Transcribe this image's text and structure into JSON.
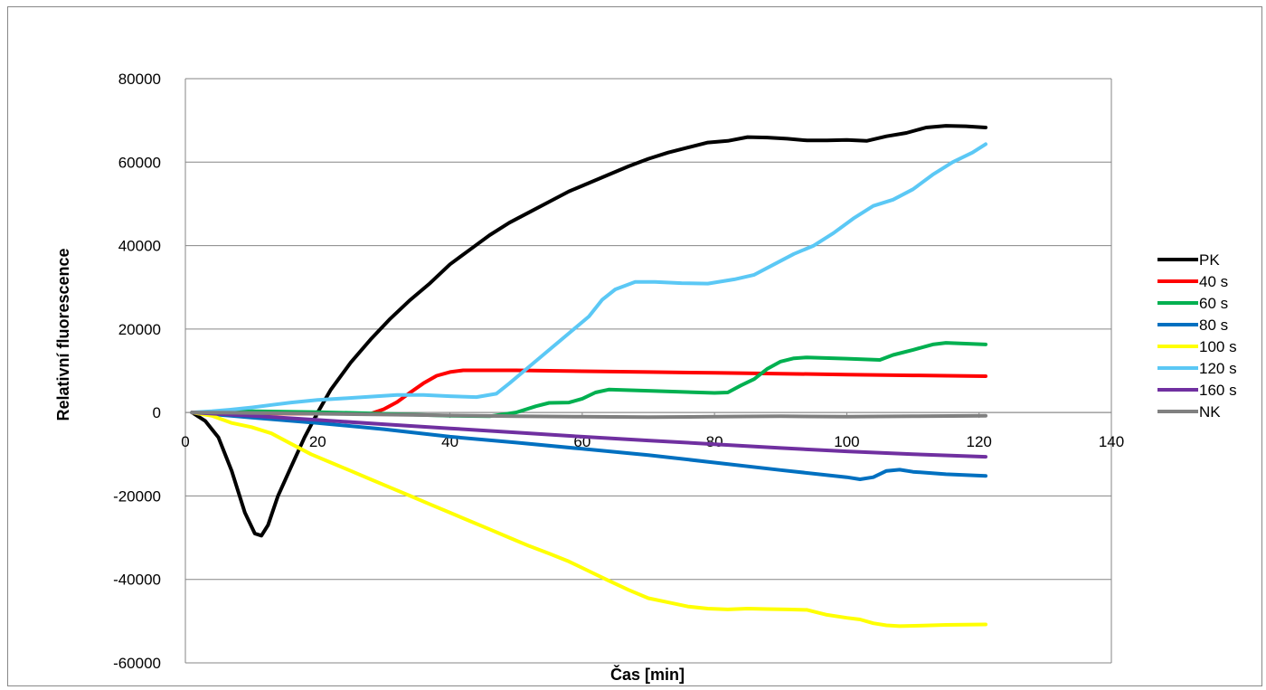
{
  "chart_data": {
    "type": "line",
    "xlabel": "Čas [min]",
    "ylabel": "Relativní fluorescence",
    "xlim": [
      0,
      140
    ],
    "ylim": [
      -60000,
      80000
    ],
    "x_ticks": [
      0,
      20,
      40,
      60,
      80,
      100,
      120,
      140
    ],
    "y_ticks": [
      -60000,
      -40000,
      -20000,
      0,
      20000,
      40000,
      60000,
      80000
    ],
    "grid": "horizontal",
    "legend_position": "right",
    "series": [
      {
        "name": "PK",
        "color": "#000000",
        "points": [
          [
            1,
            0
          ],
          [
            3,
            -2000
          ],
          [
            5,
            -6000
          ],
          [
            7,
            -14000
          ],
          [
            9,
            -24000
          ],
          [
            10.5,
            -29000
          ],
          [
            11.5,
            -29500
          ],
          [
            12.5,
            -27000
          ],
          [
            14,
            -20000
          ],
          [
            16,
            -13000
          ],
          [
            18,
            -6000
          ],
          [
            20,
            0
          ],
          [
            22,
            5500
          ],
          [
            25,
            12000
          ],
          [
            28,
            17500
          ],
          [
            31,
            22500
          ],
          [
            34,
            27000
          ],
          [
            37,
            31000
          ],
          [
            40,
            35500
          ],
          [
            43,
            39000
          ],
          [
            46,
            42500
          ],
          [
            49,
            45500
          ],
          [
            52,
            48000
          ],
          [
            55,
            50500
          ],
          [
            58,
            53000
          ],
          [
            61,
            55000
          ],
          [
            64,
            57000
          ],
          [
            67,
            59000
          ],
          [
            70,
            60800
          ],
          [
            73,
            62300
          ],
          [
            76,
            63500
          ],
          [
            79,
            64700
          ],
          [
            82,
            65100
          ],
          [
            85,
            66000
          ],
          [
            88,
            65900
          ],
          [
            91,
            65600
          ],
          [
            94,
            65200
          ],
          [
            97,
            65200
          ],
          [
            100,
            65300
          ],
          [
            103,
            65100
          ],
          [
            106,
            66200
          ],
          [
            109,
            67000
          ],
          [
            112,
            68300
          ],
          [
            115,
            68700
          ],
          [
            118,
            68600
          ],
          [
            121,
            68300
          ]
        ]
      },
      {
        "name": "40 s",
        "color": "#ff0000",
        "points": [
          [
            1,
            0
          ],
          [
            10,
            -200
          ],
          [
            20,
            -300
          ],
          [
            28,
            -300
          ],
          [
            30,
            800
          ],
          [
            32,
            2500
          ],
          [
            34,
            4800
          ],
          [
            36,
            7000
          ],
          [
            38,
            8800
          ],
          [
            40,
            9700
          ],
          [
            42,
            10100
          ],
          [
            50,
            10100
          ],
          [
            60,
            9900
          ],
          [
            70,
            9700
          ],
          [
            80,
            9500
          ],
          [
            90,
            9300
          ],
          [
            100,
            9100
          ],
          [
            110,
            8900
          ],
          [
            121,
            8700
          ]
        ]
      },
      {
        "name": "60 s",
        "color": "#00b050",
        "points": [
          [
            1,
            0
          ],
          [
            10,
            300
          ],
          [
            20,
            100
          ],
          [
            30,
            -300
          ],
          [
            40,
            -800
          ],
          [
            46,
            -900
          ],
          [
            50,
            0
          ],
          [
            53,
            1500
          ],
          [
            55,
            2300
          ],
          [
            58,
            2400
          ],
          [
            60,
            3300
          ],
          [
            62,
            4800
          ],
          [
            64,
            5500
          ],
          [
            70,
            5200
          ],
          [
            80,
            4700
          ],
          [
            82,
            4800
          ],
          [
            84,
            6500
          ],
          [
            86,
            8000
          ],
          [
            88,
            10500
          ],
          [
            90,
            12200
          ],
          [
            92,
            13000
          ],
          [
            94,
            13200
          ],
          [
            100,
            12900
          ],
          [
            105,
            12600
          ],
          [
            107,
            13800
          ],
          [
            110,
            15000
          ],
          [
            113,
            16300
          ],
          [
            115,
            16700
          ],
          [
            121,
            16300
          ]
        ]
      },
      {
        "name": "80 s",
        "color": "#0070c0",
        "points": [
          [
            1,
            0
          ],
          [
            10,
            -1200
          ],
          [
            20,
            -2500
          ],
          [
            30,
            -4000
          ],
          [
            40,
            -5800
          ],
          [
            50,
            -7200
          ],
          [
            60,
            -8700
          ],
          [
            70,
            -10200
          ],
          [
            80,
            -12000
          ],
          [
            90,
            -13800
          ],
          [
            100,
            -15500
          ],
          [
            102,
            -16000
          ],
          [
            104,
            -15500
          ],
          [
            106,
            -14000
          ],
          [
            108,
            -13700
          ],
          [
            110,
            -14200
          ],
          [
            115,
            -14800
          ],
          [
            121,
            -15200
          ]
        ]
      },
      {
        "name": "100 s",
        "color": "#ffff00",
        "points": [
          [
            1,
            0
          ],
          [
            4,
            -800
          ],
          [
            7,
            -2500
          ],
          [
            10,
            -3500
          ],
          [
            13,
            -5000
          ],
          [
            16,
            -7500
          ],
          [
            19,
            -10000
          ],
          [
            22,
            -12000
          ],
          [
            25,
            -14000
          ],
          [
            28,
            -16000
          ],
          [
            31,
            -18000
          ],
          [
            34,
            -20000
          ],
          [
            37,
            -22000
          ],
          [
            40,
            -24000
          ],
          [
            43,
            -26000
          ],
          [
            46,
            -28000
          ],
          [
            49,
            -30000
          ],
          [
            52,
            -32000
          ],
          [
            55,
            -33800
          ],
          [
            58,
            -35700
          ],
          [
            61,
            -38000
          ],
          [
            64,
            -40300
          ],
          [
            67,
            -42500
          ],
          [
            70,
            -44500
          ],
          [
            73,
            -45500
          ],
          [
            76,
            -46500
          ],
          [
            79,
            -47000
          ],
          [
            82,
            -47200
          ],
          [
            85,
            -47000
          ],
          [
            88,
            -47100
          ],
          [
            91,
            -47200
          ],
          [
            94,
            -47300
          ],
          [
            97,
            -48500
          ],
          [
            100,
            -49200
          ],
          [
            102,
            -49600
          ],
          [
            104,
            -50500
          ],
          [
            106,
            -51000
          ],
          [
            108,
            -51200
          ],
          [
            111,
            -51100
          ],
          [
            115,
            -50900
          ],
          [
            121,
            -50800
          ]
        ]
      },
      {
        "name": "120 s",
        "color": "#5bc8f5",
        "points": [
          [
            1,
            0
          ],
          [
            4,
            300
          ],
          [
            7,
            700
          ],
          [
            10,
            1200
          ],
          [
            13,
            1800
          ],
          [
            16,
            2400
          ],
          [
            20,
            3000
          ],
          [
            24,
            3400
          ],
          [
            28,
            3800
          ],
          [
            32,
            4200
          ],
          [
            36,
            4200
          ],
          [
            40,
            3900
          ],
          [
            44,
            3700
          ],
          [
            47,
            4500
          ],
          [
            49,
            7000
          ],
          [
            52,
            11000
          ],
          [
            55,
            15000
          ],
          [
            58,
            19000
          ],
          [
            61,
            23000
          ],
          [
            63,
            27000
          ],
          [
            65,
            29500
          ],
          [
            68,
            31300
          ],
          [
            71,
            31300
          ],
          [
            75,
            31000
          ],
          [
            79,
            30900
          ],
          [
            83,
            31900
          ],
          [
            86,
            33000
          ],
          [
            89,
            35500
          ],
          [
            92,
            38000
          ],
          [
            95,
            40000
          ],
          [
            98,
            43000
          ],
          [
            101,
            46500
          ],
          [
            104,
            49500
          ],
          [
            107,
            51000
          ],
          [
            110,
            53500
          ],
          [
            113,
            57000
          ],
          [
            116,
            60000
          ],
          [
            119,
            62300
          ],
          [
            121,
            64300
          ]
        ]
      },
      {
        "name": "160 s",
        "color": "#7030a0",
        "points": [
          [
            1,
            0
          ],
          [
            10,
            -800
          ],
          [
            20,
            -1800
          ],
          [
            30,
            -2800
          ],
          [
            40,
            -3800
          ],
          [
            50,
            -4800
          ],
          [
            60,
            -5800
          ],
          [
            70,
            -6700
          ],
          [
            80,
            -7600
          ],
          [
            90,
            -8500
          ],
          [
            100,
            -9300
          ],
          [
            110,
            -10000
          ],
          [
            121,
            -10600
          ]
        ]
      },
      {
        "name": "NK",
        "color": "#808080",
        "points": [
          [
            1,
            0
          ],
          [
            10,
            -100
          ],
          [
            20,
            -300
          ],
          [
            30,
            -500
          ],
          [
            40,
            -700
          ],
          [
            50,
            -900
          ],
          [
            60,
            -1000
          ],
          [
            70,
            -1100
          ],
          [
            80,
            -1000
          ],
          [
            90,
            -900
          ],
          [
            100,
            -1000
          ],
          [
            110,
            -900
          ],
          [
            121,
            -800
          ]
        ]
      }
    ]
  }
}
